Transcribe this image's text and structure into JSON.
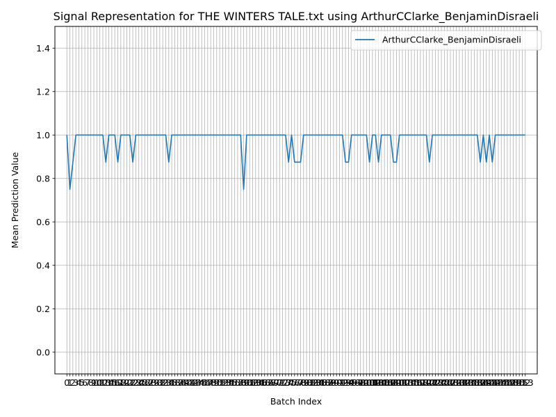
{
  "chart_data": {
    "type": "line",
    "title": "Signal Representation for THE WINTERS TALE.txt using ArthurCClarke_BenjaminDisraeli",
    "xlabel": "Batch Index",
    "ylabel": "Mean Prediction Value",
    "xlim": [
      -4,
      157
    ],
    "ylim": [
      -0.1,
      1.5
    ],
    "yticks": [
      0.0,
      0.2,
      0.4,
      0.6,
      0.8,
      1.0,
      1.2,
      1.4
    ],
    "xtick_count": 154,
    "grid": true,
    "legend_position": "top-right",
    "series": [
      {
        "name": "ArthurCClarke_BenjaminDisraeli",
        "color": "#1f77b4",
        "x": [
          0,
          1,
          2,
          3,
          4,
          5,
          6,
          7,
          8,
          9,
          10,
          11,
          12,
          13,
          14,
          15,
          16,
          17,
          18,
          19,
          20,
          21,
          22,
          23,
          24,
          25,
          26,
          27,
          28,
          29,
          30,
          31,
          32,
          33,
          34,
          35,
          36,
          37,
          38,
          39,
          40,
          41,
          42,
          43,
          44,
          45,
          46,
          47,
          48,
          49,
          50,
          51,
          52,
          53,
          54,
          55,
          56,
          57,
          58,
          59,
          60,
          61,
          62,
          63,
          64,
          65,
          66,
          67,
          68,
          69,
          70,
          71,
          72,
          73,
          74,
          75,
          76,
          77,
          78,
          79,
          80,
          81,
          82,
          83,
          84,
          85,
          86,
          87,
          88,
          89,
          90,
          91,
          92,
          93,
          94,
          95,
          96,
          97,
          98,
          99,
          100,
          101,
          102,
          103,
          104,
          105,
          106,
          107,
          108,
          109,
          110,
          111,
          112,
          113,
          114,
          115,
          116,
          117,
          118,
          119,
          120,
          121,
          122,
          123,
          124,
          125,
          126,
          127,
          128,
          129,
          130,
          131,
          132,
          133,
          134,
          135,
          136,
          137,
          138,
          139,
          140,
          141,
          142,
          143,
          144,
          145,
          146,
          147,
          148,
          149,
          150,
          151,
          152,
          153
        ],
        "y": [
          1.0,
          0.75,
          0.875,
          1.0,
          1.0,
          1.0,
          1.0,
          1.0,
          1.0,
          1.0,
          1.0,
          1.0,
          1.0,
          0.875,
          1.0,
          1.0,
          1.0,
          0.875,
          1.0,
          1.0,
          1.0,
          1.0,
          0.875,
          1.0,
          1.0,
          1.0,
          1.0,
          1.0,
          1.0,
          1.0,
          1.0,
          1.0,
          1.0,
          1.0,
          0.875,
          1.0,
          1.0,
          1.0,
          1.0,
          1.0,
          1.0,
          1.0,
          1.0,
          1.0,
          1.0,
          1.0,
          1.0,
          1.0,
          1.0,
          1.0,
          1.0,
          1.0,
          1.0,
          1.0,
          1.0,
          1.0,
          1.0,
          1.0,
          1.0,
          0.75,
          1.0,
          1.0,
          1.0,
          1.0,
          1.0,
          1.0,
          1.0,
          1.0,
          1.0,
          1.0,
          1.0,
          1.0,
          1.0,
          1.0,
          0.875,
          1.0,
          0.875,
          0.875,
          0.875,
          1.0,
          1.0,
          1.0,
          1.0,
          1.0,
          1.0,
          1.0,
          1.0,
          1.0,
          1.0,
          1.0,
          1.0,
          1.0,
          1.0,
          0.875,
          0.875,
          1.0,
          1.0,
          1.0,
          1.0,
          1.0,
          1.0,
          0.875,
          1.0,
          1.0,
          0.875,
          1.0,
          1.0,
          1.0,
          1.0,
          0.875,
          0.875,
          1.0,
          1.0,
          1.0,
          1.0,
          1.0,
          1.0,
          1.0,
          1.0,
          1.0,
          1.0,
          0.875,
          1.0,
          1.0,
          1.0,
          1.0,
          1.0,
          1.0,
          1.0,
          1.0,
          1.0,
          1.0,
          1.0,
          1.0,
          1.0,
          1.0,
          1.0,
          1.0,
          0.875,
          1.0,
          0.875,
          1.0,
          0.875,
          1.0,
          1.0,
          1.0,
          1.0,
          1.0,
          1.0,
          1.0,
          1.0,
          1.0,
          1.0,
          1.0
        ]
      }
    ]
  }
}
